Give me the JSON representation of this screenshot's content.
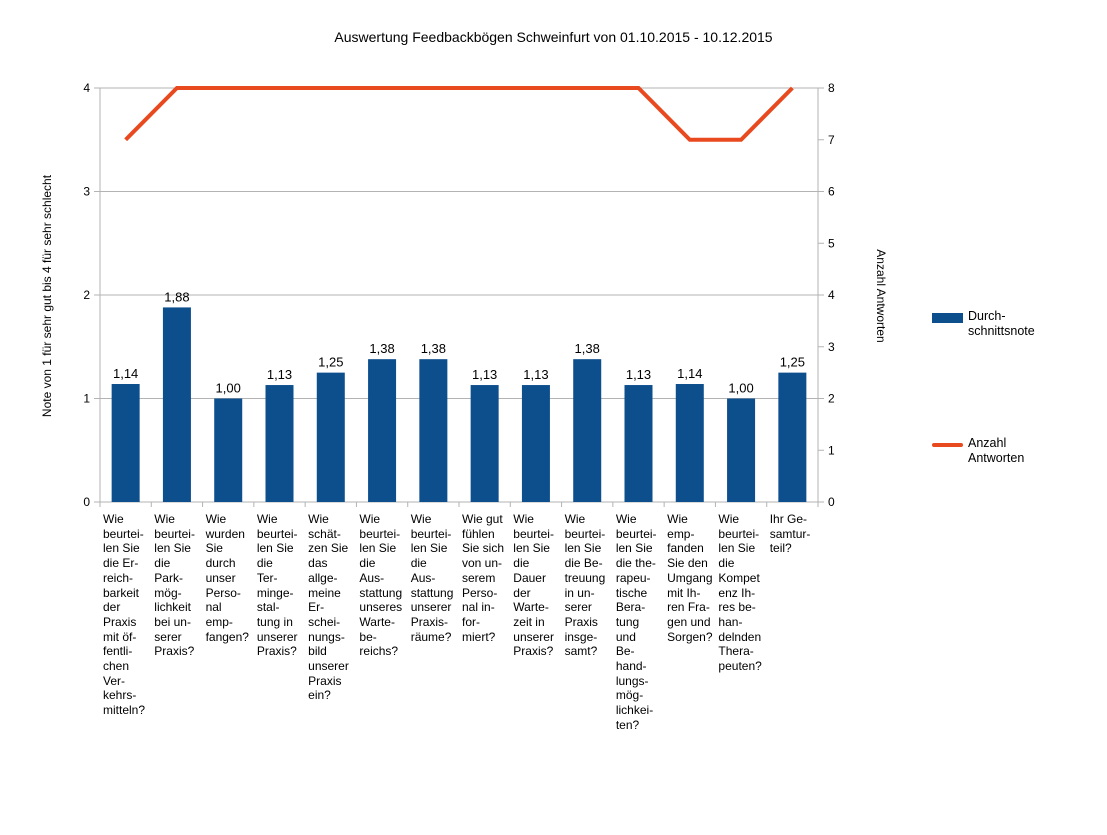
{
  "title": "Auswertung Feedbackbögen Schweinfurt von 01.10.2015 - 10.12.2015",
  "colors": {
    "bar": "#0d4e8d",
    "line": "#e8491e",
    "grid": "#b3b3b3",
    "axis": "#b3b3b3",
    "text": "#000000"
  },
  "left_axis": {
    "title": "Note von 1 für sehr gut bis 4 für sehr schlecht",
    "min": 0,
    "max": 4,
    "ticks": [
      "0",
      "1",
      "2",
      "3",
      "4"
    ]
  },
  "right_axis": {
    "title": "Anzahl Antworten",
    "min": 0,
    "max": 8,
    "ticks": [
      "0",
      "1",
      "2",
      "3",
      "4",
      "5",
      "6",
      "7",
      "8"
    ]
  },
  "legend": {
    "items": [
      {
        "label": "Durch-\nschnittsnote",
        "swatch": "bar-swatch"
      },
      {
        "label": "Anzahl\nAntworten",
        "swatch": "line-swatch"
      }
    ]
  },
  "chart_data": {
    "type": "bar",
    "title": "Auswertung Feedbackbögen Schweinfurt von 01.10.2015 - 10.12.2015",
    "categories": [
      "Wie beurteilen Sie die Erreichbarkeit der Praxis mit öffentlichen Verkehrsmitteln?",
      "Wie beurteilen Sie die Parkmöglichkeit bei unserer Praxis?",
      "Wie wurden Sie durch unser Personal empfangen?",
      "Wie beurteilen Sie die Termingestaltung in unserer Praxis?",
      "Wie schätzen Sie das allgemeine Erscheinungsbild unserer Praxis ein?",
      "Wie beurteilen Sie die Ausstattung unseres Wartebereichs?",
      "Wie beurteilen Sie die Ausstattung unserer Praxisräume?",
      "Wie gut fühlen Sie sich von unserem Personal informiert?",
      "Wie beurteilen Sie die Dauer der Wartezeit in unserer Praxis?",
      "Wie beurteilen Sie die Betreuung in unserer Praxis insgesamt?",
      "Wie beurteilen Sie die therapeutische Beratung und Behandlungsmöglichkeiten?",
      "Wie empfanden Sie den Umgang mit Ihren Fragen und Sorgen?",
      "Wie beurteilen Sie die Kompetenz Ihres behandelnden Therapeuten?",
      "Ihr Gesamturteil?"
    ],
    "category_label_lines": [
      [
        "Wie",
        "beurtei-",
        "len Sie",
        "die Er-",
        "reich-",
        "barkeit",
        "der",
        "Praxis",
        "mit öf-",
        "fentli-",
        "chen",
        "Ver-",
        "kehrs-",
        "mitteln?"
      ],
      [
        "Wie",
        "beurtei-",
        "len Sie",
        "die",
        "Park-",
        "mög-",
        "lichkeit",
        "bei un-",
        "serer",
        "Praxis?"
      ],
      [
        "Wie",
        "wurden",
        "Sie",
        "durch",
        "unser",
        "Perso-",
        "nal",
        "emp-",
        "fangen?"
      ],
      [
        "Wie",
        "beurtei-",
        "len Sie",
        "die",
        "Ter-",
        "minge-",
        "stal-",
        "tung in",
        "unserer",
        "Praxis?"
      ],
      [
        "Wie",
        "schät-",
        "zen Sie",
        "das",
        "allge-",
        "meine",
        "Er-",
        "schei-",
        "nungs-",
        "bild",
        "unserer",
        "Praxis",
        "ein?"
      ],
      [
        "Wie",
        "beurtei-",
        "len Sie",
        "die",
        "Aus-",
        "stattung",
        "unseres",
        "Warte-",
        "be-",
        "reichs?"
      ],
      [
        "Wie",
        "beurtei-",
        "len Sie",
        "die",
        "Aus-",
        "stattung",
        "unserer",
        "Praxis-",
        "räume?"
      ],
      [
        "Wie gut",
        "fühlen",
        "Sie sich",
        "von un-",
        "serem",
        "Perso-",
        "nal in-",
        "for-",
        "miert?"
      ],
      [
        "Wie",
        "beurtei-",
        "len Sie",
        "die",
        "Dauer",
        "der",
        "Warte-",
        "zeit in",
        "unserer",
        "Praxis?"
      ],
      [
        "Wie",
        "beurtei-",
        "len Sie",
        "die Be-",
        "treuung",
        "in un-",
        "serer",
        "Praxis",
        "insge-",
        "samt?"
      ],
      [
        "Wie",
        "beurtei-",
        "len Sie",
        "die the-",
        "rapeu-",
        "tische",
        "Bera-",
        "tung",
        "und",
        "Be-",
        "hand-",
        "lungs-",
        "mög-",
        "lichkei-",
        "ten?"
      ],
      [
        "Wie",
        "emp-",
        "fanden",
        "Sie den",
        "Umgang",
        "mit Ih-",
        "ren Fra-",
        "gen und",
        "Sorgen?"
      ],
      [
        "Wie",
        "beurtei-",
        "len Sie",
        "die",
        "Kompet",
        "enz Ih-",
        "res be-",
        "han-",
        "delnden",
        "Thera-",
        "peuten?"
      ],
      [
        "Ihr Ge-",
        "samtur-",
        "teil?"
      ]
    ],
    "series": [
      {
        "name": "Durchschnittsnote",
        "type": "bar",
        "axis": "left",
        "values": [
          1.14,
          1.88,
          1.0,
          1.13,
          1.25,
          1.38,
          1.38,
          1.13,
          1.13,
          1.38,
          1.13,
          1.14,
          1.0,
          1.25
        ],
        "data_labels": [
          "1,14",
          "1,88",
          "1,00",
          "1,13",
          "1,25",
          "1,38",
          "1,38",
          "1,13",
          "1,13",
          "1,38",
          "1,13",
          "1,14",
          "1,00",
          "1,25"
        ]
      },
      {
        "name": "Anzahl Antworten",
        "type": "line",
        "axis": "right",
        "values": [
          7,
          8,
          8,
          8,
          8,
          8,
          8,
          8,
          8,
          8,
          8,
          7,
          7,
          8
        ]
      }
    ],
    "xlabel": "",
    "ylabel_left": "Note von 1 für sehr gut bis 4 für sehr schlecht",
    "ylabel_right": "Anzahl Antworten",
    "left_ylim": [
      0,
      4
    ],
    "right_ylim": [
      0,
      8
    ],
    "grid": "horizontal-left-axis-only",
    "legend_position": "right"
  }
}
